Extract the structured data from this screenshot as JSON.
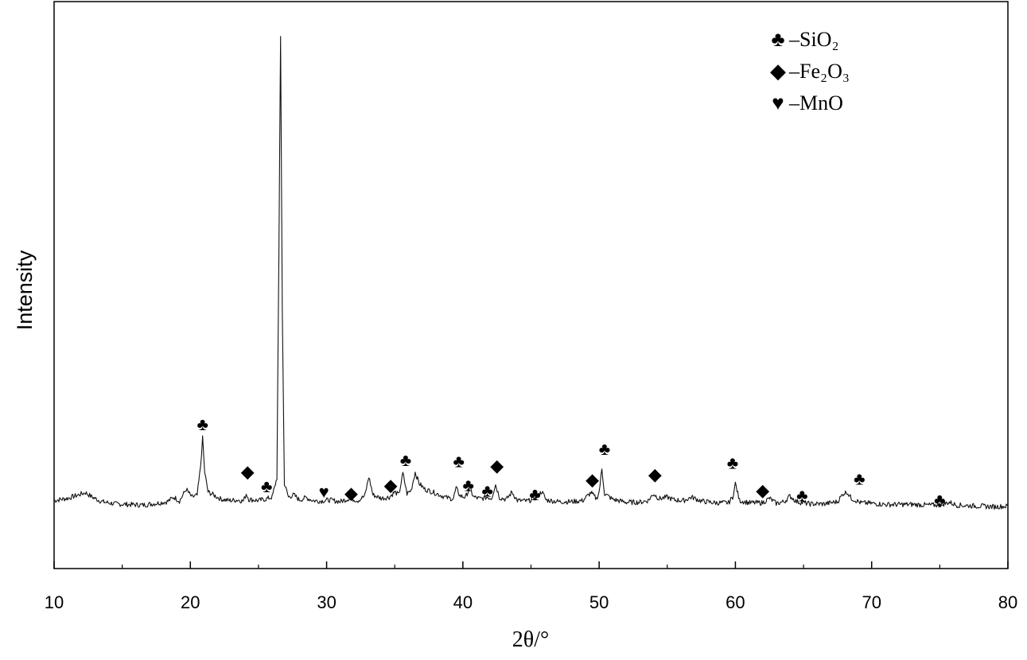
{
  "chart_data": {
    "type": "line",
    "xlabel": "2θ/°",
    "ylabel": "Intensity",
    "xlim": [
      10,
      80
    ],
    "ylim": [
      0,
      100
    ],
    "x_ticks": [
      "10",
      "20",
      "30",
      "40",
      "50",
      "60",
      "70",
      "80"
    ],
    "y_ticks_shown": false,
    "grid": false,
    "legend_position": "top-right",
    "legend": [
      {
        "symbol": "♣",
        "label": "–SiO₂"
      },
      {
        "symbol": "◆",
        "label": "–Fe₂O₃"
      },
      {
        "symbol": "♥",
        "label": "–MnO"
      }
    ],
    "series": [
      {
        "points": [
          [
            10,
            12.0
          ],
          [
            11.0,
            12.4
          ],
          [
            11.8,
            13.0
          ],
          [
            12.3,
            13.4
          ],
          [
            12.8,
            12.6
          ],
          [
            13.5,
            11.8
          ],
          [
            14.5,
            11.4
          ],
          [
            15.5,
            11.3
          ],
          [
            16.5,
            11.2
          ],
          [
            17.5,
            11.5
          ],
          [
            18.3,
            11.8
          ],
          [
            18.8,
            12.6
          ],
          [
            19.2,
            11.9
          ],
          [
            19.7,
            14.0
          ],
          [
            20.1,
            12.6
          ],
          [
            20.5,
            12.9
          ],
          [
            20.75,
            18.0
          ],
          [
            20.9,
            23.0
          ],
          [
            21.05,
            17.0
          ],
          [
            21.3,
            13.5
          ],
          [
            21.7,
            13.0
          ],
          [
            22.2,
            12.3
          ],
          [
            22.8,
            12.0
          ],
          [
            23.5,
            12.1
          ],
          [
            23.9,
            11.9
          ],
          [
            24.1,
            13.2
          ],
          [
            24.3,
            12.2
          ],
          [
            25.0,
            12.0
          ],
          [
            25.6,
            12.3
          ],
          [
            26.0,
            12.6
          ],
          [
            26.35,
            16.0
          ],
          [
            26.5,
            55.0
          ],
          [
            26.62,
            94.0
          ],
          [
            26.75,
            45.0
          ],
          [
            26.9,
            15.0
          ],
          [
            27.2,
            12.6
          ],
          [
            27.6,
            13.0
          ],
          [
            28.0,
            12.1
          ],
          [
            28.5,
            12.5
          ],
          [
            29.0,
            12.0
          ],
          [
            29.5,
            11.9
          ],
          [
            30.2,
            12.1
          ],
          [
            31.0,
            11.8
          ],
          [
            31.7,
            12.4
          ],
          [
            32.3,
            12.0
          ],
          [
            32.8,
            12.8
          ],
          [
            33.1,
            16.2
          ],
          [
            33.4,
            13.0
          ],
          [
            34.0,
            12.4
          ],
          [
            34.6,
            12.6
          ],
          [
            35.0,
            13.5
          ],
          [
            35.3,
            13.0
          ],
          [
            35.6,
            16.8
          ],
          [
            35.9,
            13.2
          ],
          [
            36.2,
            13.8
          ],
          [
            36.5,
            17.0
          ],
          [
            36.8,
            15.0
          ],
          [
            37.2,
            14.0
          ],
          [
            37.8,
            13.5
          ],
          [
            38.3,
            13.0
          ],
          [
            38.8,
            12.5
          ],
          [
            39.3,
            12.3
          ],
          [
            39.5,
            14.2
          ],
          [
            39.8,
            12.8
          ],
          [
            40.2,
            12.6
          ],
          [
            40.5,
            14.2
          ],
          [
            40.8,
            12.6
          ],
          [
            41.3,
            12.3
          ],
          [
            41.8,
            12.6
          ],
          [
            42.1,
            12.4
          ],
          [
            42.4,
            14.8
          ],
          [
            42.7,
            12.5
          ],
          [
            43.2,
            12.2
          ],
          [
            43.6,
            13.5
          ],
          [
            44.0,
            12.0
          ],
          [
            44.8,
            11.9
          ],
          [
            45.4,
            12.6
          ],
          [
            45.8,
            13.6
          ],
          [
            46.1,
            12.1
          ],
          [
            47.0,
            11.8
          ],
          [
            48.0,
            11.8
          ],
          [
            48.8,
            12.0
          ],
          [
            49.4,
            13.4
          ],
          [
            49.8,
            12.3
          ],
          [
            50.0,
            13.5
          ],
          [
            50.2,
            17.5
          ],
          [
            50.4,
            13.2
          ],
          [
            51.0,
            12.2
          ],
          [
            52.0,
            11.7
          ],
          [
            53.0,
            11.7
          ],
          [
            53.6,
            12.0
          ],
          [
            54.0,
            13.2
          ],
          [
            54.4,
            12.3
          ],
          [
            55.0,
            12.6
          ],
          [
            55.5,
            12.1
          ],
          [
            56.2,
            12.0
          ],
          [
            56.8,
            12.6
          ],
          [
            57.5,
            11.9
          ],
          [
            58.5,
            11.6
          ],
          [
            59.5,
            11.6
          ],
          [
            59.8,
            12.6
          ],
          [
            60.0,
            15.0
          ],
          [
            60.3,
            12.0
          ],
          [
            61.0,
            11.6
          ],
          [
            62.0,
            11.6
          ],
          [
            62.5,
            12.4
          ],
          [
            63.0,
            11.5
          ],
          [
            63.6,
            11.8
          ],
          [
            64.0,
            12.8
          ],
          [
            64.5,
            11.8
          ],
          [
            65.5,
            11.4
          ],
          [
            66.5,
            11.4
          ],
          [
            67.5,
            11.8
          ],
          [
            67.9,
            13.2
          ],
          [
            68.2,
            13.5
          ],
          [
            68.5,
            12.4
          ],
          [
            69.2,
            11.6
          ],
          [
            70.0,
            11.5
          ],
          [
            71.0,
            11.3
          ],
          [
            72.0,
            11.3
          ],
          [
            73.0,
            11.3
          ],
          [
            74.0,
            11.2
          ],
          [
            75.0,
            11.2
          ],
          [
            75.7,
            11.7
          ],
          [
            76.2,
            11.2
          ],
          [
            77.0,
            11.1
          ],
          [
            78.0,
            11.0
          ],
          [
            79.0,
            10.9
          ],
          [
            80.0,
            11.0
          ]
        ]
      }
    ],
    "markers": [
      {
        "x": 20.9,
        "y": 25.5,
        "symbol": "♣"
      },
      {
        "x": 24.2,
        "y": 17.2,
        "symbol": "◆"
      },
      {
        "x": 25.6,
        "y": 14.6,
        "symbol": "♣"
      },
      {
        "x": 29.8,
        "y": 13.6,
        "symbol": "♥"
      },
      {
        "x": 31.8,
        "y": 13.4,
        "symbol": "◆"
      },
      {
        "x": 34.7,
        "y": 14.8,
        "symbol": "◆"
      },
      {
        "x": 35.8,
        "y": 19.2,
        "symbol": "♣"
      },
      {
        "x": 39.7,
        "y": 19.0,
        "symbol": "♣"
      },
      {
        "x": 40.4,
        "y": 14.8,
        "symbol": "♣"
      },
      {
        "x": 41.8,
        "y": 13.8,
        "symbol": "♣"
      },
      {
        "x": 42.5,
        "y": 18.2,
        "symbol": "◆"
      },
      {
        "x": 45.3,
        "y": 13.2,
        "symbol": "♣"
      },
      {
        "x": 49.5,
        "y": 15.8,
        "symbol": "◆"
      },
      {
        "x": 50.4,
        "y": 21.2,
        "symbol": "♣"
      },
      {
        "x": 54.1,
        "y": 16.7,
        "symbol": "◆"
      },
      {
        "x": 59.8,
        "y": 18.7,
        "symbol": "♣"
      },
      {
        "x": 62.0,
        "y": 13.9,
        "symbol": "◆"
      },
      {
        "x": 64.9,
        "y": 13.0,
        "symbol": "♣"
      },
      {
        "x": 69.1,
        "y": 15.9,
        "symbol": "♣"
      },
      {
        "x": 75.0,
        "y": 12.2,
        "symbol": "♣"
      }
    ]
  }
}
